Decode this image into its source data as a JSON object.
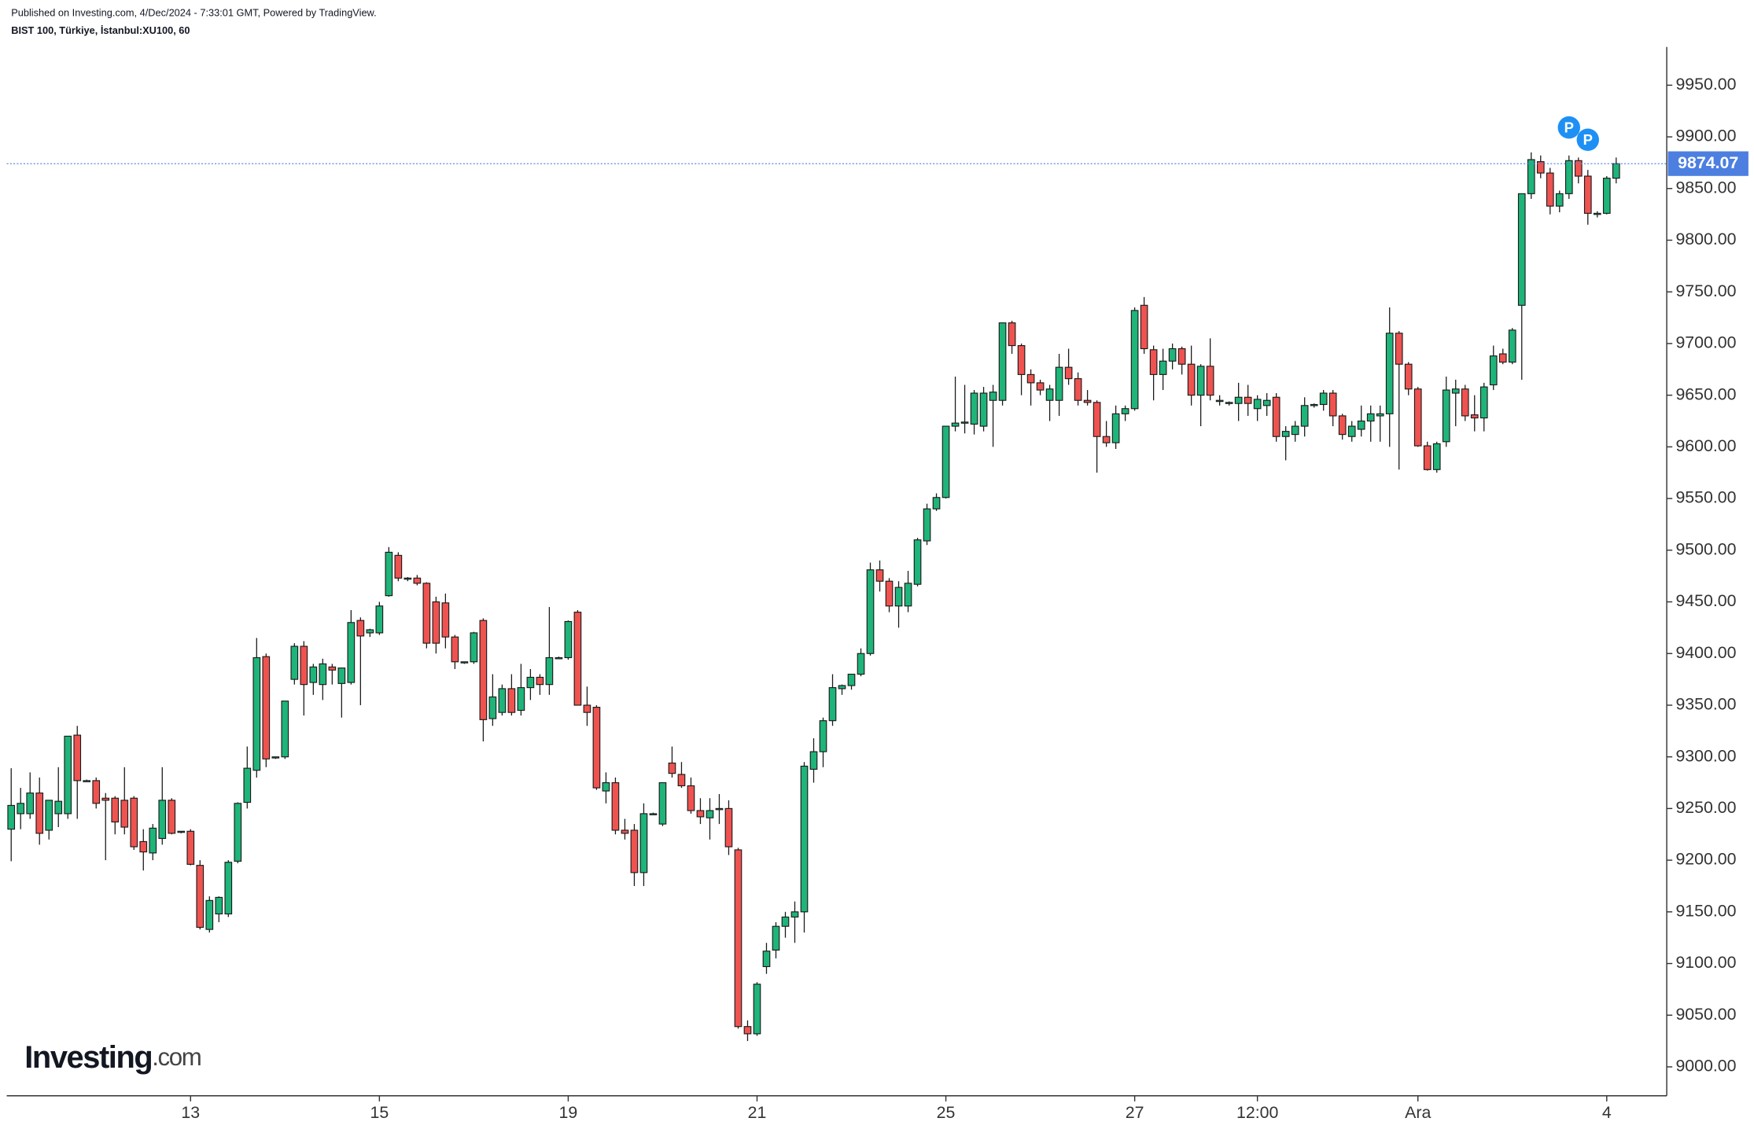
{
  "header": {
    "published": "Published on Investing.com, 4/Dec/2024 - 7:33:01 GMT, Powered by TradingView.",
    "symbol": "BIST 100, Türkiye, İstanbul:XU100, 60"
  },
  "logo": [
    "Investing",
    ".com"
  ],
  "chart_data": {
    "type": "candlestick",
    "up_color": "#1fb479",
    "down_color": "#ef5350",
    "outline_color": "#1a1a1a",
    "last_price_color": "#4c7fe0",
    "markers": [
      "P",
      "P"
    ],
    "marker_color": "#1e90f5",
    "categories": [
      null,
      null,
      null,
      null,
      null,
      null,
      null,
      null,
      null,
      null,
      null,
      null,
      null,
      null,
      null,
      null,
      null,
      null,
      null,
      "13",
      null,
      null,
      null,
      null,
      null,
      null,
      null,
      null,
      null,
      null,
      null,
      null,
      null,
      null,
      null,
      null,
      null,
      null,
      null,
      "15",
      null,
      null,
      null,
      null,
      null,
      null,
      null,
      null,
      null,
      null,
      null,
      null,
      null,
      null,
      null,
      null,
      null,
      null,
      null,
      "19",
      null,
      null,
      null,
      null,
      null,
      null,
      null,
      null,
      null,
      null,
      null,
      null,
      null,
      null,
      null,
      null,
      null,
      null,
      null,
      "21",
      null,
      null,
      null,
      null,
      null,
      null,
      null,
      null,
      null,
      null,
      null,
      null,
      null,
      null,
      null,
      null,
      null,
      null,
      null,
      "25",
      null,
      null,
      null,
      null,
      null,
      null,
      null,
      null,
      null,
      null,
      null,
      null,
      null,
      null,
      null,
      null,
      null,
      null,
      null,
      "27",
      null,
      null,
      null,
      null,
      null,
      null,
      null,
      null,
      null,
      null,
      null,
      null,
      "12:00",
      null,
      null,
      null,
      null,
      null,
      null,
      null,
      null,
      null,
      null,
      null,
      null,
      null,
      null,
      null,
      null,
      "Ara",
      null,
      null,
      null,
      null,
      null,
      null,
      null,
      null,
      null,
      null,
      null,
      null,
      null,
      null,
      null,
      null,
      null,
      null,
      null,
      "4",
      null
    ],
    "open": [
      9230,
      9245,
      9245,
      9265,
      9229,
      9245,
      9245,
      9321,
      9277,
      9277,
      9260,
      9260,
      9258,
      9260,
      9218,
      9207,
      9221,
      9258,
      9228,
      9228,
      9195,
      9133,
      9148,
      9148,
      9199,
      9256,
      9287,
      9397,
      9299,
      9300,
      9375,
      9407,
      9372,
      9370,
      9387,
      9371,
      9372,
      9432,
      9420,
      9420,
      9456,
      9495,
      9473,
      9473,
      9468,
      9450,
      9449,
      9416,
      9391,
      9392,
      9432,
      9337,
      9343,
      9366,
      9345,
      9367,
      9377,
      9370,
      9396,
      9396,
      9440,
      9350,
      9348,
      9267,
      9275,
      9229,
      9229,
      9188,
      9245,
      9235,
      9294,
      9283,
      9272,
      9248,
      9241,
      9250,
      9250,
      9210,
      9039,
      9032,
      9097,
      9113,
      9136,
      9145,
      9150,
      9288,
      9305,
      9335,
      9366,
      9369,
      9380,
      9400,
      9481,
      9470,
      9446,
      9446,
      9467,
      9509,
      9540,
      9551,
      9620,
      9623,
      9622,
      9620,
      9645,
      9645,
      9720,
      9698,
      9670,
      9662,
      9645,
      9645,
      9677,
      9666,
      9645,
      9643,
      9610,
      9604,
      9632,
      9637,
      9737,
      9694,
      9670,
      9683,
      9695,
      9680,
      9650,
      9678,
      9645,
      9642,
      9642,
      9648,
      9637,
      9640,
      9648,
      9610,
      9612,
      9620,
      9640,
      9641,
      9652,
      9630,
      9610,
      9617,
      9625,
      9630,
      9632,
      9710,
      9680,
      9656,
      9601,
      9578,
      9605,
      9652,
      9656,
      9631,
      9628,
      9660,
      9690,
      9682,
      9737,
      9845,
      9876,
      9865,
      9833,
      9845,
      9877,
      9862,
      9825,
      9826,
      9860
    ],
    "high": [
      9289,
      9270,
      9285,
      9280,
      9255,
      9290,
      9320,
      9330,
      9278,
      9280,
      9265,
      9262,
      9290,
      9262,
      9230,
      9235,
      9290,
      9260,
      9228,
      9230,
      9200,
      9165,
      9165,
      9200,
      9256,
      9310,
      9415,
      9400,
      9300,
      9354,
      9410,
      9412,
      9390,
      9395,
      9390,
      9385,
      9442,
      9435,
      9424,
      9450,
      9503,
      9498,
      9474,
      9476,
      9469,
      9455,
      9458,
      9418,
      9392,
      9421,
      9434,
      9380,
      9370,
      9380,
      9390,
      9385,
      9380,
      9445,
      9397,
      9432,
      9442,
      9368,
      9350,
      9285,
      9280,
      9240,
      9235,
      9255,
      9246,
      9275,
      9310,
      9295,
      9280,
      9260,
      9260,
      9264,
      9258,
      9212,
      9045,
      9082,
      9120,
      9140,
      9150,
      9160,
      9295,
      9318,
      9338,
      9380,
      9370,
      9380,
      9405,
      9488,
      9490,
      9473,
      9470,
      9480,
      9512,
      9545,
      9555,
      9620,
      9668,
      9660,
      9655,
      9658,
      9660,
      9720,
      9722,
      9700,
      9675,
      9665,
      9660,
      9690,
      9695,
      9672,
      9655,
      9645,
      9625,
      9640,
      9640,
      9735,
      9745,
      9698,
      9695,
      9700,
      9697,
      9698,
      9680,
      9705,
      9650,
      9644,
      9662,
      9660,
      9650,
      9652,
      9652,
      9620,
      9625,
      9648,
      9642,
      9655,
      9655,
      9632,
      9625,
      9640,
      9640,
      9640,
      9735,
      9712,
      9682,
      9658,
      9605,
      9605,
      9668,
      9665,
      9660,
      9650,
      9662,
      9698,
      9695,
      9715,
      9845,
      9885,
      9882,
      9870,
      9848,
      9882,
      9880,
      9868,
      9828,
      9862,
      9880
    ],
    "low": [
      9199,
      9230,
      9240,
      9215,
      9220,
      9232,
      9240,
      9240,
      9276,
      9250,
      9200,
      9225,
      9225,
      9210,
      9190,
      9200,
      9215,
      9225,
      9226,
      9195,
      9133,
      9130,
      9140,
      9145,
      9197,
      9250,
      9280,
      9290,
      9298,
      9298,
      9370,
      9340,
      9360,
      9355,
      9370,
      9338,
      9370,
      9350,
      9416,
      9418,
      9455,
      9470,
      9470,
      9466,
      9405,
      9400,
      9405,
      9385,
      9390,
      9390,
      9315,
      9330,
      9340,
      9340,
      9340,
      9355,
      9360,
      9360,
      9395,
      9394,
      9350,
      9330,
      9268,
      9255,
      9225,
      9220,
      9175,
      9175,
      9244,
      9233,
      9280,
      9270,
      9245,
      9235,
      9220,
      9235,
      9205,
      9037,
      9025,
      9030,
      9090,
      9105,
      9125,
      9120,
      9130,
      9275,
      9290,
      9330,
      9360,
      9365,
      9378,
      9398,
      9460,
      9440,
      9425,
      9440,
      9465,
      9505,
      9538,
      9550,
      9615,
      9613,
      9612,
      9615,
      9600,
      9640,
      9690,
      9650,
      9640,
      9650,
      9625,
      9630,
      9660,
      9640,
      9640,
      9575,
      9600,
      9598,
      9625,
      9635,
      9690,
      9645,
      9655,
      9675,
      9670,
      9640,
      9620,
      9645,
      9640,
      9640,
      9625,
      9630,
      9625,
      9630,
      9605,
      9587,
      9605,
      9610,
      9638,
      9635,
      9620,
      9607,
      9605,
      9610,
      9605,
      9605,
      9600,
      9578,
      9650,
      9600,
      9577,
      9575,
      9600,
      9620,
      9625,
      9615,
      9615,
      9655,
      9680,
      9680,
      9665,
      9840,
      9860,
      9825,
      9827,
      9840,
      9855,
      9815,
      9822,
      9825,
      9855
    ],
    "close": [
      9253,
      9255,
      9265,
      9226,
      9258,
      9257,
      9320,
      9277,
      9277,
      9255,
      9258,
      9237,
      9232,
      9213,
      9208,
      9231,
      9258,
      9226,
      9228,
      9196,
      9135,
      9161,
      9164,
      9198,
      9255,
      9289,
      9396,
      9298,
      9300,
      9354,
      9407,
      9370,
      9387,
      9390,
      9384,
      9386,
      9430,
      9417,
      9423,
      9446,
      9498,
      9473,
      9473,
      9468,
      9410,
      9410,
      9416,
      9392,
      9392,
      9420,
      9336,
      9358,
      9366,
      9343,
      9367,
      9377,
      9370,
      9396,
      9396,
      9431,
      9350,
      9343,
      9270,
      9275,
      9229,
      9226,
      9188,
      9245,
      9245,
      9275,
      9284,
      9272,
      9248,
      9242,
      9248,
      9250,
      9213,
      9039,
      9032,
      9080,
      9112,
      9136,
      9145,
      9150,
      9291,
      9305,
      9335,
      9367,
      9369,
      9380,
      9400,
      9481,
      9470,
      9446,
      9464,
      9468,
      9510,
      9540,
      9551,
      9620,
      9623,
      9624,
      9652,
      9652,
      9653,
      9720,
      9698,
      9670,
      9662,
      9655,
      9656,
      9677,
      9666,
      9645,
      9643,
      9610,
      9604,
      9632,
      9637,
      9732,
      9695,
      9670,
      9683,
      9695,
      9680,
      9650,
      9678,
      9650,
      9645,
      9643,
      9648,
      9642,
      9646,
      9645,
      9610,
      9615,
      9620,
      9640,
      9641,
      9652,
      9630,
      9612,
      9620,
      9625,
      9632,
      9632,
      9710,
      9680,
      9656,
      9601,
      9578,
      9603,
      9655,
      9656,
      9630,
      9628,
      9658,
      9688,
      9682,
      9713,
      9845,
      9878,
      9865,
      9833,
      9845,
      9877,
      9862,
      9826,
      9826,
      9860,
      9874.07
    ],
    "ylim": [
      8972,
      9987
    ],
    "yticks": [
      {
        "value": 9000,
        "label": "9000.00"
      },
      {
        "value": 9050,
        "label": "9050.00"
      },
      {
        "value": 9100,
        "label": "9100.00"
      },
      {
        "value": 9150,
        "label": "9150.00"
      },
      {
        "value": 9200,
        "label": "9200.00"
      },
      {
        "value": 9250,
        "label": "9250.00"
      },
      {
        "value": 9300,
        "label": "9300.00"
      },
      {
        "value": 9350,
        "label": "9350.00"
      },
      {
        "value": 9400,
        "label": "9400.00"
      },
      {
        "value": 9450,
        "label": "9450.00"
      },
      {
        "value": 9500,
        "label": "9500.00"
      },
      {
        "value": 9550,
        "label": "9550.00"
      },
      {
        "value": 9600,
        "label": "9600.00"
      },
      {
        "value": 9650,
        "label": "9650.00"
      },
      {
        "value": 9700,
        "label": "9700.00"
      },
      {
        "value": 9750,
        "label": "9750.00"
      },
      {
        "value": 9800,
        "label": "9800.00"
      },
      {
        "value": 9850,
        "label": "9850.00"
      },
      {
        "value": 9900,
        "label": "9900.00"
      },
      {
        "value": 9950,
        "label": "9950.00"
      }
    ],
    "grid": false
  }
}
